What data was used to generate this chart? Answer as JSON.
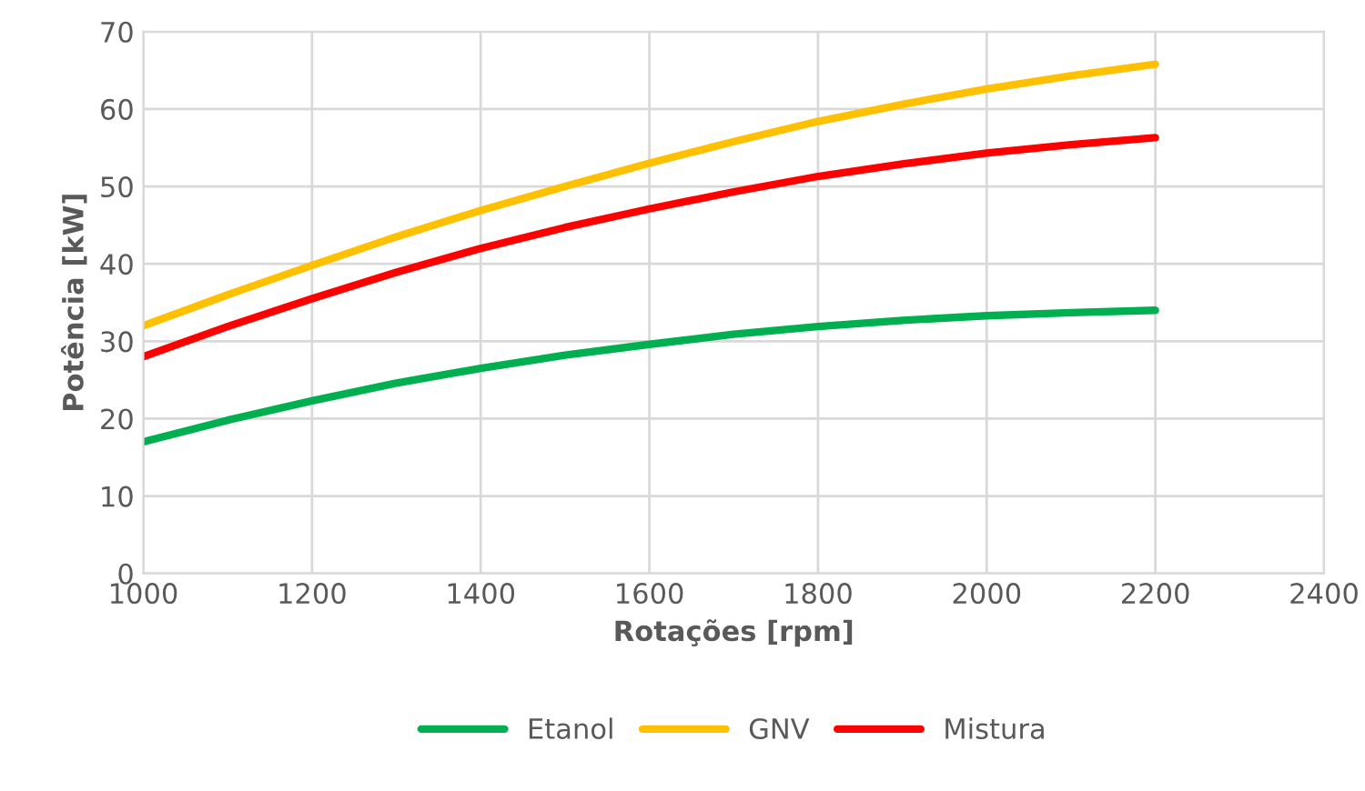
{
  "chart_data": {
    "type": "line",
    "xlabel": "Rotações [rpm]",
    "ylabel": "Potência [kW]",
    "x": [
      1000,
      1100,
      1200,
      1300,
      1400,
      1500,
      1600,
      1700,
      1800,
      1900,
      2000,
      2100,
      2200
    ],
    "series": [
      {
        "name": "Etanol",
        "color": "#00b050",
        "values": [
          17,
          19.8,
          22.3,
          24.6,
          26.5,
          28.2,
          29.6,
          30.9,
          31.9,
          32.7,
          33.3,
          33.7,
          34
        ]
      },
      {
        "name": "GNV",
        "color": "#ffc000",
        "values": [
          32,
          36,
          39.8,
          43.5,
          46.9,
          50,
          53,
          55.8,
          58.4,
          60.6,
          62.6,
          64.3,
          65.8
        ]
      },
      {
        "name": "Mistura",
        "color": "#ff0000",
        "values": [
          28,
          31.9,
          35.5,
          38.9,
          42,
          44.7,
          47.1,
          49.3,
          51.3,
          52.9,
          54.3,
          55.4,
          56.3
        ]
      }
    ],
    "xlim": [
      1000,
      2400
    ],
    "xticks": [
      1000,
      1200,
      1400,
      1600,
      1800,
      2000,
      2200,
      2400
    ],
    "ylim": [
      0,
      70
    ],
    "yticks": [
      0,
      10,
      20,
      30,
      40,
      50,
      60,
      70
    ],
    "grid": true,
    "legend": "bottom",
    "marker": "none",
    "line_style": "solid"
  }
}
